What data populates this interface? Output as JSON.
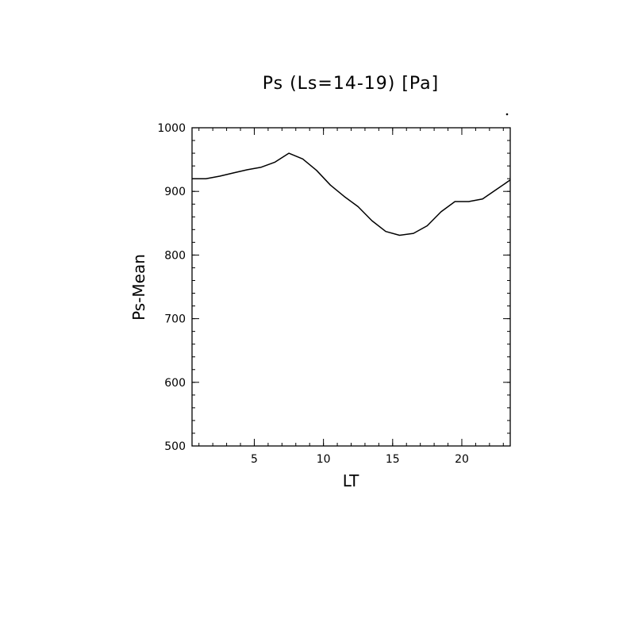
{
  "chart_data": {
    "type": "line",
    "title": "Ps (Ls=14-19) [Pa]",
    "xlabel": "LT",
    "ylabel": "Ps-Mean",
    "xlim": [
      0.5,
      23.5
    ],
    "ylim": [
      500,
      1000
    ],
    "xticks": [
      5,
      10,
      15,
      20
    ],
    "yticks": [
      500,
      600,
      700,
      800,
      900,
      1000
    ],
    "grid": false,
    "series": [
      {
        "x": [
          0.5,
          1.5,
          2.5,
          3.5,
          4.5,
          5.5,
          6.5,
          7.5,
          8.5,
          9.5,
          10.5,
          11.5,
          12.5,
          13.5,
          14.5,
          15.5,
          16.5,
          17.5,
          18.5,
          19.5,
          20.5,
          21.5,
          22.5,
          23.5
        ],
        "y": [
          920,
          920,
          924,
          929,
          934,
          938,
          946,
          960,
          951,
          933,
          910,
          892,
          876,
          854,
          837,
          831,
          834,
          846,
          868,
          884,
          884,
          888,
          903,
          918
        ],
        "color": "#000000"
      }
    ]
  }
}
